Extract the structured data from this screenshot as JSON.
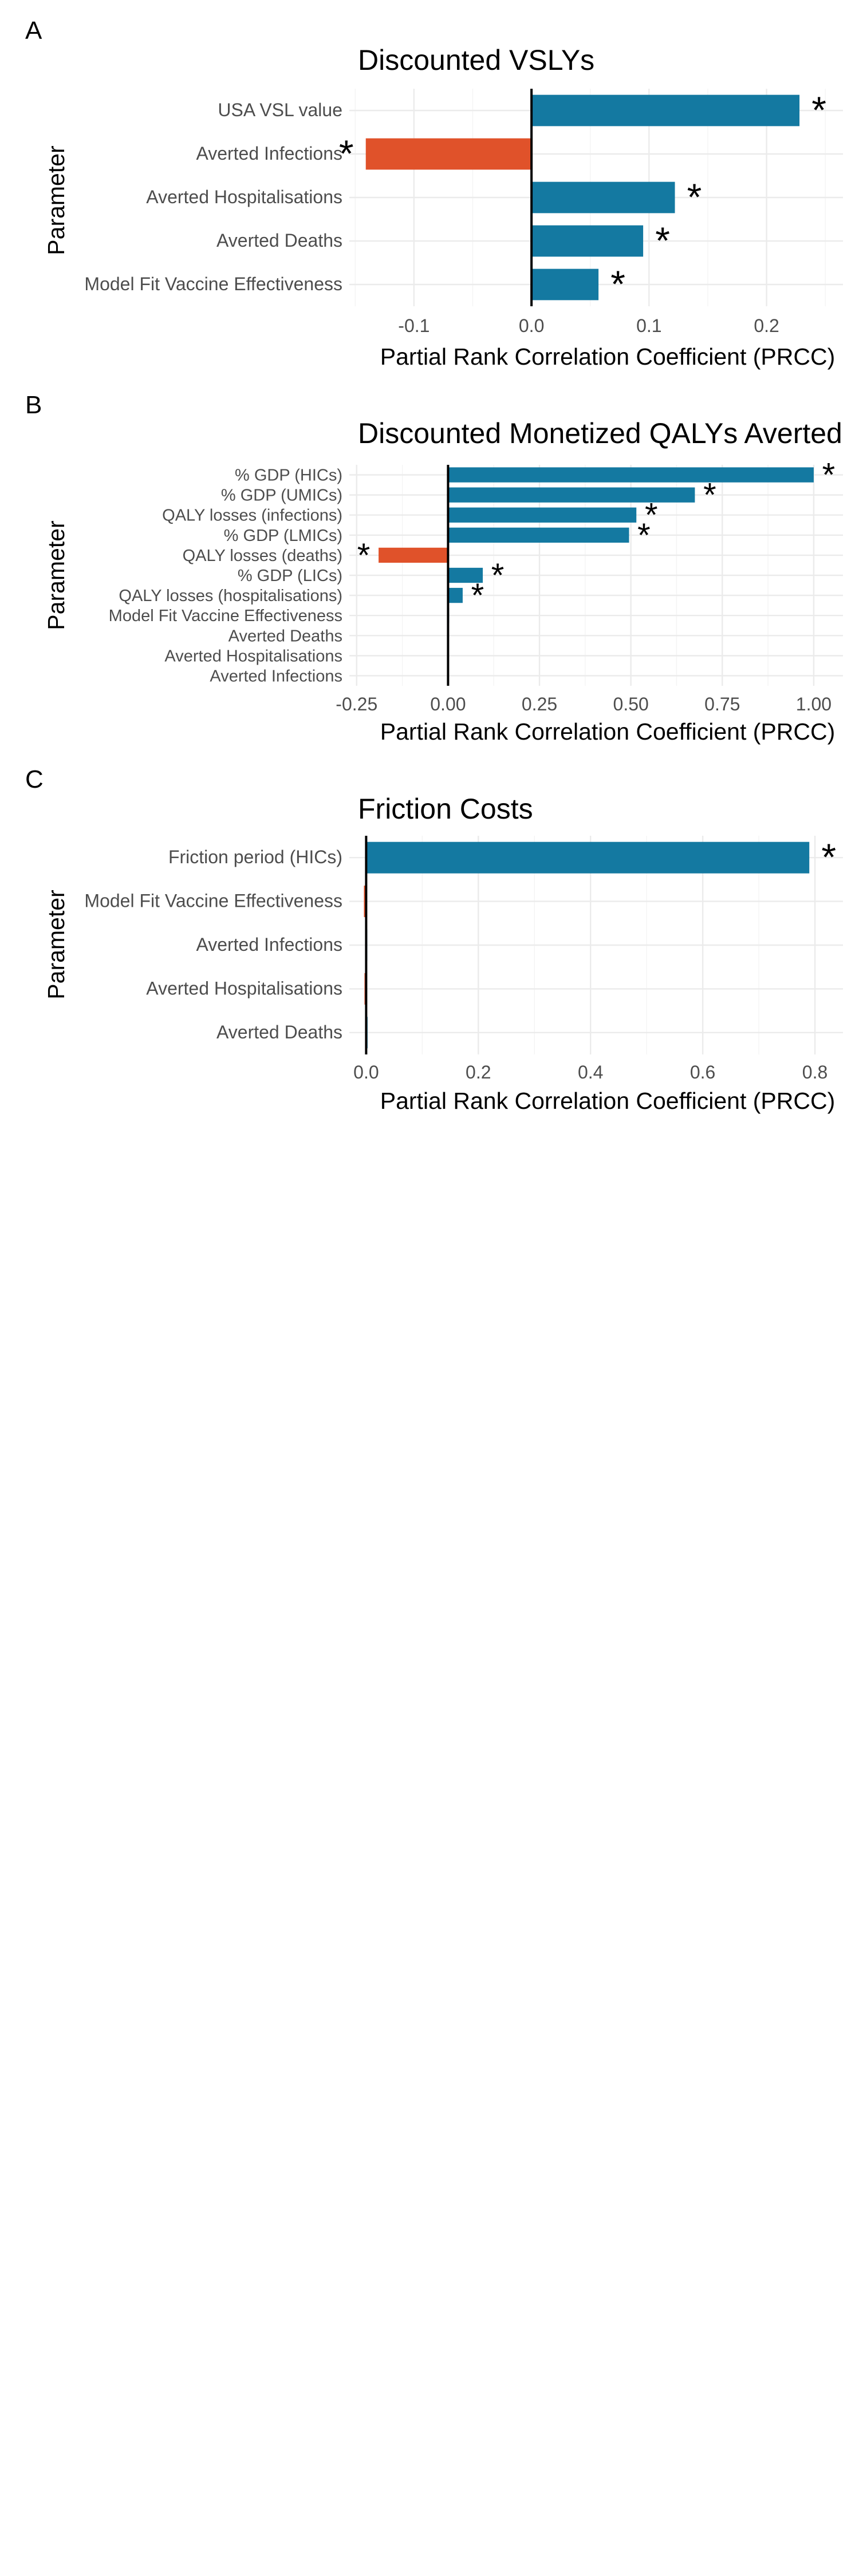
{
  "colors": {
    "positive": "#1479a1",
    "negative": "#e0522a",
    "grid": "#ebebeb"
  },
  "chart_data": [
    {
      "panel": "A",
      "type": "bar",
      "orientation": "horizontal",
      "title": "Discounted VSLYs",
      "xlabel": "Partial Rank Correlation Coefficient (PRCC)",
      "ylabel": "Parameter",
      "xlim": [
        -0.155,
        0.265
      ],
      "xticks": [
        -0.1,
        0.0,
        0.1,
        0.2
      ],
      "xtick_labels": [
        "-0.1",
        "0.0",
        "0.1",
        "0.2"
      ],
      "categories": [
        "USA VSL value",
        "Averted Infections",
        "Averted Hospitalisations",
        "Averted Deaths",
        "Model Fit Vaccine Effectiveness"
      ],
      "values": [
        0.228,
        -0.141,
        0.122,
        0.095,
        0.057
      ],
      "significant": [
        true,
        true,
        true,
        true,
        true
      ],
      "significance_marker": "*",
      "grid": true
    },
    {
      "panel": "B",
      "type": "bar",
      "orientation": "horizontal",
      "title": "Discounted Monetized QALYs Averted",
      "xlabel": "Partial Rank Correlation Coefficient (PRCC)",
      "ylabel": "Parameter",
      "xlim": [
        -0.27,
        1.08
      ],
      "xticks": [
        -0.25,
        0.0,
        0.25,
        0.5,
        0.75,
        1.0
      ],
      "xtick_labels": [
        "-0.25",
        "0.00",
        "0.25",
        "0.50",
        "0.75",
        "1.00"
      ],
      "categories": [
        "% GDP (HICs)",
        "% GDP (UMICs)",
        "QALY losses (infections)",
        "% GDP (LMICs)",
        "QALY losses (deaths)",
        "% GDP (LICs)",
        "QALY losses (hospitalisations)",
        "Model Fit Vaccine Effectiveness",
        "Averted Deaths",
        "Averted Hospitalisations",
        "Averted Infections"
      ],
      "values": [
        1.0,
        0.675,
        0.515,
        0.495,
        -0.19,
        0.095,
        0.04,
        0.003,
        0.0,
        0.0,
        0.0
      ],
      "significant": [
        true,
        true,
        true,
        true,
        true,
        true,
        true,
        false,
        false,
        false,
        false
      ],
      "significance_marker": "*",
      "grid": true
    },
    {
      "panel": "C",
      "type": "bar",
      "orientation": "horizontal",
      "title": "Friction Costs",
      "xlabel": "Partial Rank Correlation Coefficient (PRCC)",
      "ylabel": "Parameter",
      "xlim": [
        -0.03,
        0.85
      ],
      "xticks": [
        0.0,
        0.2,
        0.4,
        0.6,
        0.8
      ],
      "xtick_labels": [
        "0.0",
        "0.2",
        "0.4",
        "0.6",
        "0.8"
      ],
      "categories": [
        "Friction period (HICs)",
        "Model Fit Vaccine Effectiveness",
        "Averted Infections",
        "Averted Hospitalisations",
        "Averted Deaths"
      ],
      "values": [
        0.79,
        -0.004,
        0.002,
        -0.003,
        0.001
      ],
      "significant": [
        true,
        false,
        false,
        false,
        false
      ],
      "significance_marker": "*",
      "grid": true
    }
  ]
}
